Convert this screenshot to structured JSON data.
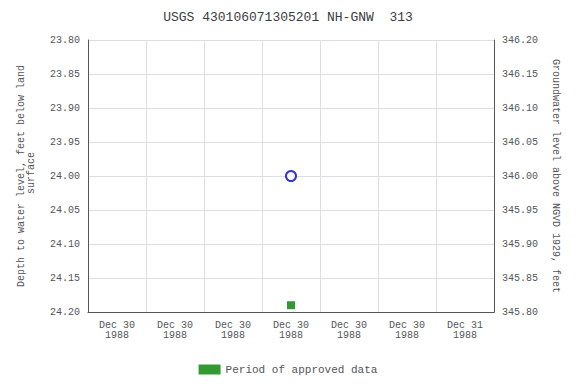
{
  "chart_data": {
    "type": "scatter",
    "title": "USGS 430106071305201 NH-GNW  313",
    "ylabel": "Depth to water level, feet below land\n surface",
    "y2label": "Groundwater level above NGVD 1929, feet",
    "categories": [
      "Dec 30\n1988",
      "Dec 30\n1988",
      "Dec 30\n1988",
      "Dec 30\n1988",
      "Dec 30\n1988",
      "Dec 30\n1988",
      "Dec 31\n1988"
    ],
    "series": [
      {
        "color": "#0000cc",
        "marker": "circle_open",
        "values": [
          null,
          null,
          null,
          24.0,
          null,
          null,
          null
        ]
      },
      {
        "name": "Period of approved data",
        "color": "#008000",
        "marker": "square",
        "values": [
          null,
          null,
          null,
          24.19,
          null,
          null,
          null
        ]
      }
    ],
    "ylim": [
      24.2,
      23.8
    ],
    "yticks": [
      {
        "value": 23.8,
        "label": "23.80"
      },
      {
        "value": 23.85,
        "label": "23.85"
      },
      {
        "value": 23.9,
        "label": "23.90"
      },
      {
        "value": 23.95,
        "label": "23.95"
      },
      {
        "value": 24.0,
        "label": "24.00"
      },
      {
        "value": 24.05,
        "label": "24.05"
      },
      {
        "value": 24.1,
        "label": "24.10"
      },
      {
        "value": 24.15,
        "label": "24.15"
      },
      {
        "value": 24.2,
        "label": "24.20"
      }
    ],
    "y2lim": [
      345.8,
      346.2
    ],
    "y2ticks": [
      {
        "value": 346.2,
        "label": "346.20"
      },
      {
        "value": 346.15,
        "label": "346.15"
      },
      {
        "value": 346.1,
        "label": "346.10"
      },
      {
        "value": 346.05,
        "label": "346.05"
      },
      {
        "value": 346.0,
        "label": "346.00"
      },
      {
        "value": 345.95,
        "label": "345.95"
      },
      {
        "value": 345.9,
        "label": "345.90"
      },
      {
        "value": 345.85,
        "label": "345.85"
      },
      {
        "value": 345.8,
        "label": "345.80"
      }
    ],
    "grid": true,
    "legend": "bottom"
  }
}
